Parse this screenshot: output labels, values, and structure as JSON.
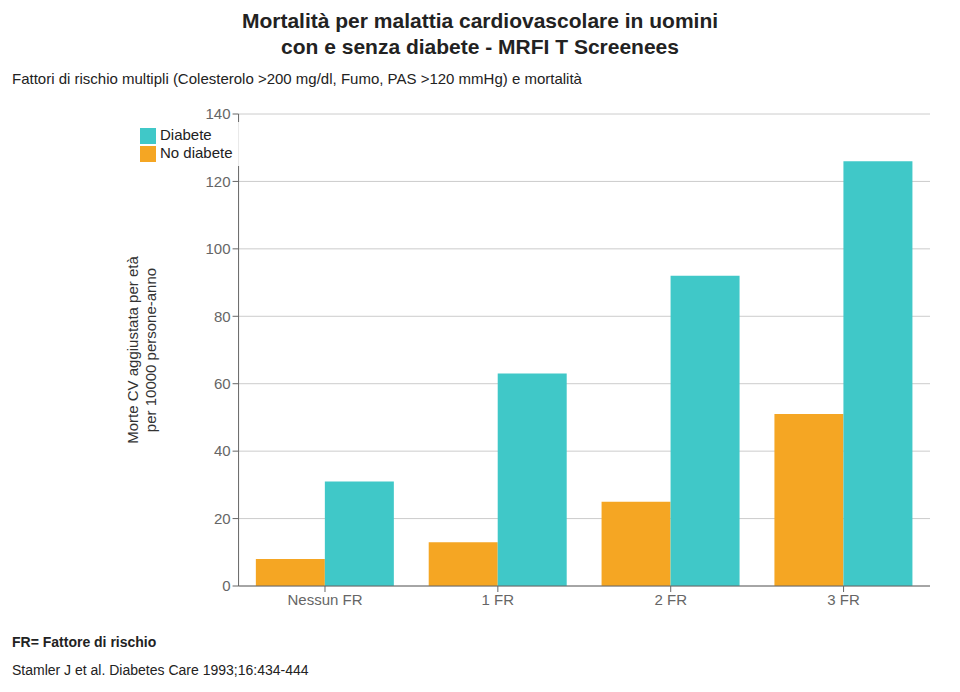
{
  "chart_data": {
    "type": "bar",
    "title": "Mortalità per malattia cardiovascolare in uomini\ncon e senza diabete - MRFI T Screenees",
    "subtitle": "Fattori di rischio multipli (Colesterolo >200 mg/dl, Fumo, PAS >120 mmHg) e mortalità",
    "y_label": "Morte CV aggiustata per età\nper 10000 persone-anno",
    "categories": [
      "Nessun FR",
      "1 FR",
      "2 FR",
      "3 FR"
    ],
    "series": [
      {
        "name": "No diabete",
        "color": "#F5A623",
        "values": [
          8,
          13,
          25,
          51
        ]
      },
      {
        "name": "Diabete",
        "color": "#40C8C8",
        "values": [
          31,
          63,
          92,
          126
        ]
      }
    ],
    "ylim": [
      0,
      140
    ],
    "yticks": [
      0,
      20,
      40,
      60,
      80,
      100,
      120,
      140
    ],
    "grid": true,
    "legend": "upper left",
    "annotations": [
      "FR= Fattore di rischio",
      "Stamler J et al. Diabetes Care 1993;16:434-444"
    ]
  }
}
